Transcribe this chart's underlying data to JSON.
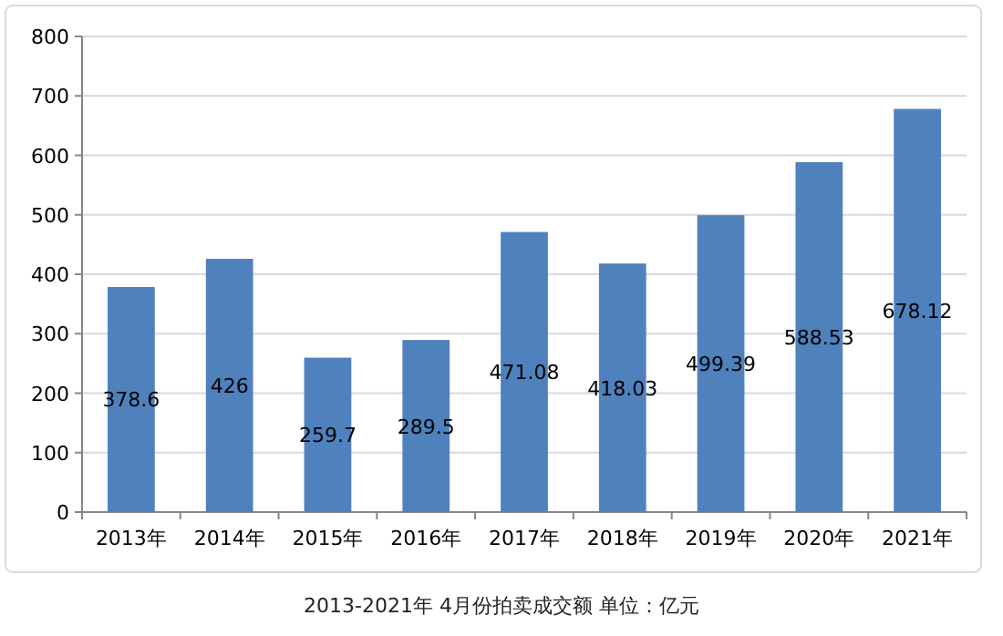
{
  "chart_data": {
    "type": "bar",
    "title": "2013-2021年 4月份拍卖成交额    单位：亿元",
    "categories": [
      "2013年",
      "2014年",
      "2015年",
      "2016年",
      "2017年",
      "2018年",
      "2019年",
      "2020年",
      "2021年"
    ],
    "values": [
      378.6,
      426,
      259.7,
      289.5,
      471.08,
      418.03,
      499.39,
      588.53,
      678.12
    ],
    "color": "#4f81bd",
    "ylim": [
      0,
      800
    ],
    "yticks": [
      0,
      100,
      200,
      300,
      400,
      500,
      600,
      700,
      800
    ],
    "grid": "y",
    "data_labels": true
  }
}
